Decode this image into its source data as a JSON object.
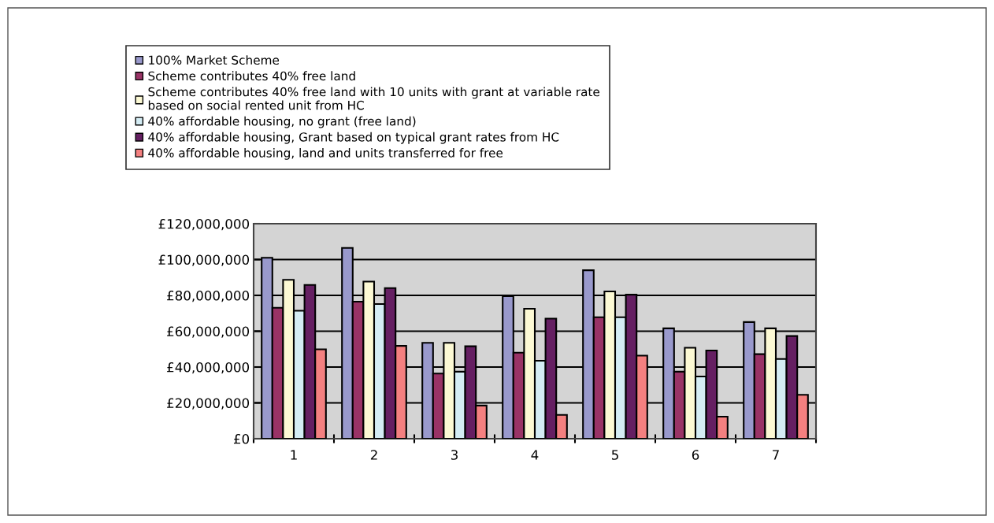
{
  "chart_data": {
    "type": "bar",
    "categories": [
      "1",
      "2",
      "3",
      "4",
      "5",
      "6",
      "7"
    ],
    "series": [
      {
        "name": "100% Market Scheme",
        "color": "#9999cc",
        "values": [
          101000000,
          106500000,
          53500000,
          79600000,
          94000000,
          61600000,
          65100000
        ]
      },
      {
        "name": "Scheme contributes 40% free land",
        "color": "#993366",
        "values": [
          73100000,
          76500000,
          36400000,
          48000000,
          67800000,
          37400000,
          47200000
        ]
      },
      {
        "name": "Scheme contributes 40% free land with 10 units with grant at variable rate\nbased on social rented unit from HC",
        "color": "#fcf9d4",
        "values": [
          88700000,
          87700000,
          53500000,
          72500000,
          82200000,
          50800000,
          61600000
        ]
      },
      {
        "name": "40% affordable housing, no grant (free land)",
        "color": "#d4ecf4",
        "values": [
          71400000,
          75200000,
          37400000,
          43500000,
          67800000,
          34700000,
          44500000
        ]
      },
      {
        "name": "40% affordable housing, Grant based on typical grant rates from HC",
        "color": "#651f62",
        "values": [
          85800000,
          84100000,
          51600000,
          67000000,
          80400000,
          49200000,
          57300000
        ]
      },
      {
        "name": "40% affordable housing, land and units transferred for free",
        "color": "#f48080",
        "values": [
          49900000,
          51800000,
          18500000,
          13300000,
          46400000,
          12300000,
          24500000
        ]
      }
    ],
    "ylim": [
      0,
      120000000
    ],
    "yticks": [
      {
        "value": 0,
        "label": "£0"
      },
      {
        "value": 20000000,
        "label": "£20,000,000"
      },
      {
        "value": 40000000,
        "label": "£40,000,000"
      },
      {
        "value": 60000000,
        "label": "£60,000,000"
      },
      {
        "value": 80000000,
        "label": "£80,000,000"
      },
      {
        "value": 100000000,
        "label": "£100,000,000"
      },
      {
        "value": 120000000,
        "label": "£120,000,000"
      }
    ],
    "grid": "y",
    "legend": "top"
  }
}
